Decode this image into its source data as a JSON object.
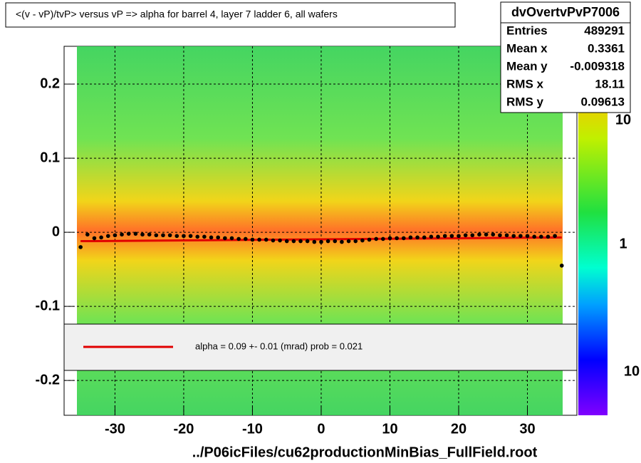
{
  "chart_data": {
    "type": "scatter",
    "title": "<(v - vP)/tvP> versus   vP => alpha for barrel 4, layer 7 ladder 6, all wafers",
    "x_label": "../P06icFiles/cu62productionMinBias_FullField.root",
    "xlim": [
      -37.4,
      37.2
    ],
    "ylim": [
      -0.247,
      0.251
    ],
    "xticks": [
      -30,
      -20,
      -10,
      0,
      10,
      20,
      30
    ],
    "yticks": [
      -0.2,
      -0.1,
      0,
      0.1,
      0.2
    ],
    "grid": true,
    "x": [
      -35,
      -34,
      -33,
      -32,
      -31,
      -30,
      -29,
      -28,
      -27,
      -26,
      -25,
      -24,
      -23,
      -22,
      -21,
      -20,
      -19,
      -18,
      -17,
      -16,
      -15,
      -14,
      -13,
      -12,
      -11,
      -10,
      -9,
      -8,
      -7,
      -6,
      -5,
      -4,
      -3,
      -2,
      -1,
      0,
      1,
      2,
      3,
      4,
      5,
      6,
      7,
      8,
      9,
      10,
      11,
      12,
      13,
      14,
      15,
      16,
      17,
      18,
      19,
      20,
      21,
      22,
      23,
      24,
      25,
      26,
      27,
      28,
      29,
      30,
      31,
      32,
      33,
      34,
      35
    ],
    "series": [
      {
        "name": "profile",
        "color": "#000000",
        "values": [
          -0.02,
          -0.003,
          -0.008,
          -0.007,
          -0.005,
          -0.004,
          -0.003,
          -0.002,
          -0.002,
          -0.003,
          -0.003,
          -0.004,
          -0.004,
          -0.004,
          -0.005,
          -0.005,
          -0.005,
          -0.006,
          -0.006,
          -0.007,
          -0.007,
          -0.008,
          -0.008,
          -0.009,
          -0.009,
          -0.01,
          -0.01,
          -0.01,
          -0.011,
          -0.011,
          -0.012,
          -0.012,
          -0.012,
          -0.012,
          -0.013,
          -0.013,
          -0.012,
          -0.012,
          -0.013,
          -0.012,
          -0.012,
          -0.011,
          -0.01,
          -0.009,
          -0.009,
          -0.008,
          -0.008,
          -0.008,
          -0.007,
          -0.007,
          -0.007,
          -0.006,
          -0.006,
          -0.005,
          -0.005,
          -0.005,
          -0.004,
          -0.004,
          -0.003,
          -0.003,
          -0.003,
          -0.004,
          -0.004,
          -0.005,
          -0.005,
          -0.005,
          -0.006,
          -0.006,
          -0.006,
          -0.005,
          -0.045
        ]
      }
    ],
    "fit": {
      "color": "#e00000",
      "x": [
        -35,
        35
      ],
      "values": [
        -0.012,
        -0.007
      ]
    },
    "legend_text": "alpha =    0.09 +-  0.01 (mrad) prob = 0.021",
    "stats": {
      "name": "dvOvertvPvP7006",
      "rows": [
        {
          "label": "Entries",
          "value": 489291
        },
        {
          "label": "Mean x",
          "value": 0.3361
        },
        {
          "label": "Mean y",
          "value": -0.009318
        },
        {
          "label": "RMS x",
          "value": 18.11
        },
        {
          "label": "RMS y",
          "value": 0.09613
        }
      ]
    },
    "colorbar_labels": [
      "10",
      "1",
      "10"
    ]
  }
}
